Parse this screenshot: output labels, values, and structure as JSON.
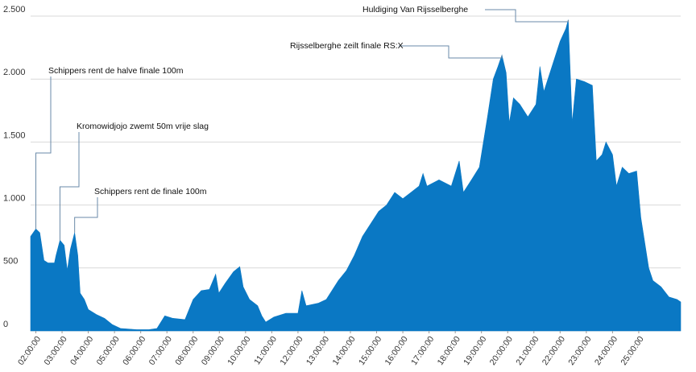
{
  "chart_data": {
    "type": "area",
    "x": [
      1.8,
      2.0,
      2.15,
      2.31,
      2.46,
      2.71,
      2.77,
      2.92,
      3.08,
      3.2,
      3.32,
      3.48,
      3.6,
      3.69,
      3.85,
      4.0,
      4.31,
      4.62,
      4.92,
      5.23,
      5.54,
      5.85,
      6.31,
      6.62,
      6.92,
      7.23,
      7.69,
      8.0,
      8.31,
      8.62,
      8.86,
      8.98,
      9.23,
      9.54,
      9.78,
      9.91,
      10.15,
      10.46,
      10.62,
      10.77,
      11.08,
      11.54,
      12.0,
      12.15,
      12.31,
      12.77,
      13.08,
      13.54,
      13.85,
      14.15,
      14.46,
      14.77,
      15.08,
      15.38,
      15.69,
      16.0,
      16.31,
      16.62,
      16.77,
      16.92,
      17.38,
      17.85,
      18.15,
      18.31,
      18.62,
      18.92,
      19.23,
      19.45,
      19.63,
      19.78,
      19.94,
      20.06,
      20.22,
      20.46,
      20.77,
      21.08,
      21.23,
      21.38,
      21.69,
      22.0,
      22.22,
      22.31,
      22.46,
      22.62,
      22.92,
      23.23,
      23.38,
      23.6,
      23.75,
      24.0,
      24.15,
      24.37,
      24.62,
      24.92,
      25.08,
      25.23,
      25.38,
      25.54,
      25.85,
      26.15,
      26.46,
      26.6
    ],
    "values": [
      750,
      810,
      780,
      560,
      540,
      540,
      600,
      720,
      680,
      480,
      650,
      780,
      600,
      300,
      250,
      170,
      130,
      100,
      50,
      20,
      15,
      10,
      10,
      20,
      120,
      100,
      90,
      250,
      320,
      330,
      450,
      300,
      380,
      470,
      510,
      350,
      250,
      200,
      120,
      70,
      110,
      140,
      140,
      320,
      200,
      220,
      250,
      400,
      480,
      600,
      750,
      850,
      950,
      1000,
      1100,
      1050,
      1100,
      1150,
      1250,
      1150,
      1200,
      1150,
      1350,
      1100,
      1200,
      1300,
      1700,
      2000,
      2100,
      2190,
      2050,
      1650,
      1850,
      1800,
      1700,
      1800,
      2100,
      1900,
      2100,
      2300,
      2400,
      2470,
      1650,
      2000,
      1980,
      1950,
      1350,
      1400,
      1500,
      1400,
      1150,
      1300,
      1250,
      1270,
      900,
      700,
      500,
      400,
      350,
      270,
      250,
      230
    ],
    "color": "#0a78c4",
    "xlim": [
      1.8,
      26.6
    ],
    "xticks": [
      {
        "value": 2,
        "label": "02:00:00"
      },
      {
        "value": 3,
        "label": "03:00:00"
      },
      {
        "value": 4,
        "label": "04:00:00"
      },
      {
        "value": 5,
        "label": "05:00:00"
      },
      {
        "value": 6,
        "label": "06:00:00"
      },
      {
        "value": 7,
        "label": "07:00:00"
      },
      {
        "value": 8,
        "label": "08:00:00"
      },
      {
        "value": 9,
        "label": "09:00:00"
      },
      {
        "value": 10,
        "label": "10:00:00"
      },
      {
        "value": 11,
        "label": "11:00:00"
      },
      {
        "value": 12,
        "label": "12:00:00"
      },
      {
        "value": 13,
        "label": "13:00:00"
      },
      {
        "value": 14,
        "label": "14:00:00"
      },
      {
        "value": 15,
        "label": "15:00:00"
      },
      {
        "value": 16,
        "label": "16:00:00"
      },
      {
        "value": 17,
        "label": "17:00:00"
      },
      {
        "value": 18,
        "label": "18:00:00"
      },
      {
        "value": 19,
        "label": "19:00:00"
      },
      {
        "value": 20,
        "label": "20:00:00"
      },
      {
        "value": 21,
        "label": "21:00:00"
      },
      {
        "value": 22,
        "label": "22:00:00"
      },
      {
        "value": 23,
        "label": "23:00:00"
      },
      {
        "value": 24,
        "label": "24:00:00"
      },
      {
        "value": 25,
        "label": "25:00:00"
      }
    ],
    "ylim": [
      0,
      2500
    ],
    "yticks": [
      0,
      500,
      {
        "value": 1000,
        "label": "1.000"
      },
      {
        "value": 1500,
        "label": "1.500"
      },
      {
        "value": 2000,
        "label": "2.000"
      },
      {
        "value": 2500,
        "label": "2.500"
      }
    ],
    "grid": true,
    "annotations": [
      {
        "text": "Huldiging Van Rijsselberghe",
        "x": 22.31,
        "y": 2470
      },
      {
        "text": "Rijsselberghe zeilt finale RS:X",
        "x": 19.78,
        "y": 2190
      },
      {
        "text": "Schippers rent de halve finale 100m",
        "x": 2.0,
        "y": 810
      },
      {
        "text": "Kromowidjojo zwemt 50m vrije slag",
        "x": 2.92,
        "y": 720
      },
      {
        "text": "Schippers rent de finale 100m",
        "x": 3.48,
        "y": 780
      }
    ]
  }
}
